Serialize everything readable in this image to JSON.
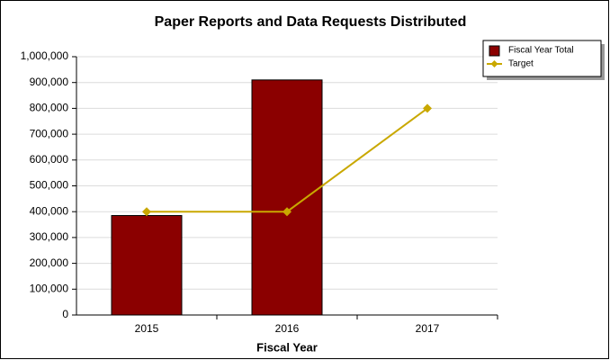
{
  "chart_data": {
    "type": "bar",
    "title": "Paper Reports and Data Requests Distributed",
    "x_label": "Fiscal Year",
    "categories": [
      "2015",
      "2016",
      "2017"
    ],
    "series": [
      {
        "name": "Fiscal Year Total",
        "type": "bar",
        "color": "#8b0000",
        "values": [
          385000,
          910000,
          null
        ]
      },
      {
        "name": "Target",
        "type": "line",
        "color": "#c9a800",
        "values": [
          400000,
          400000,
          800000
        ]
      }
    ],
    "ylim": [
      0,
      1000000
    ],
    "yticks": [
      0,
      {
        "value": 100000,
        "label": "100,000"
      },
      {
        "value": 200000,
        "label": "200,000"
      },
      {
        "value": 300000,
        "label": "300,000"
      },
      {
        "value": 400000,
        "label": "400,000"
      },
      {
        "value": 500000,
        "label": "500,000"
      },
      {
        "value": 600000,
        "label": "600,000"
      },
      {
        "value": 700000,
        "label": "700,000"
      },
      {
        "value": 800000,
        "label": "800,000"
      },
      {
        "value": 900000,
        "label": "900,000"
      },
      {
        "value": 1000000,
        "label": "1,000,000"
      }
    ],
    "grid": true,
    "legend": "top-right"
  }
}
